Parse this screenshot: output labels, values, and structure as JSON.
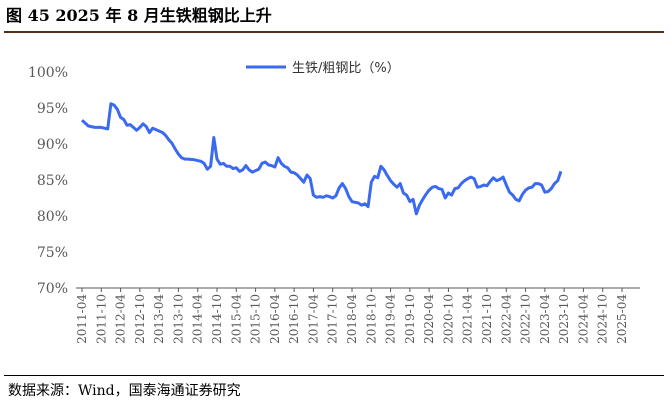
{
  "figure": {
    "title": "图 45 2025 年 8 月生铁粗钢比上升",
    "source": "数据来源：Wind，国泰海通证券研究"
  },
  "colors": {
    "series": "#3a6af0",
    "rule": "#5a2d17",
    "axis": "#595959"
  },
  "chart_data": {
    "type": "line",
    "title": "",
    "xlabel": "",
    "ylabel": "",
    "ylim": [
      70,
      100
    ],
    "y_ticks": [
      "70%",
      "75%",
      "80%",
      "85%",
      "90%",
      "95%",
      "100%"
    ],
    "x_ticks": [
      "2011-04",
      "2011-10",
      "2012-04",
      "2012-10",
      "2013-04",
      "2013-10",
      "2014-04",
      "2014-10",
      "2015-04",
      "2015-10",
      "2016-04",
      "2016-10",
      "2017-04",
      "2017-10",
      "2018-04",
      "2018-10",
      "2019-04",
      "2019-10",
      "2020-04",
      "2020-10",
      "2021-04",
      "2021-10",
      "2022-04",
      "2022-10",
      "2023-04",
      "2023-10",
      "2024-04",
      "2024-10",
      "2025-04"
    ],
    "legend": "top-center",
    "grid": false,
    "series": [
      {
        "name": "生铁/粗钢比（%）",
        "points": [
          [
            "2011-04",
            93.3
          ],
          [
            "2011-06",
            92.5
          ],
          [
            "2011-08",
            92.3
          ],
          [
            "2011-10",
            92.3
          ],
          [
            "2011-12",
            92.1
          ],
          [
            "2012-01",
            95.6
          ],
          [
            "2012-02",
            95.4
          ],
          [
            "2012-03",
            94.8
          ],
          [
            "2012-04",
            93.7
          ],
          [
            "2012-05",
            93.4
          ],
          [
            "2012-06",
            92.6
          ],
          [
            "2012-07",
            92.7
          ],
          [
            "2012-08",
            92.3
          ],
          [
            "2012-09",
            91.9
          ],
          [
            "2012-10",
            92.3
          ],
          [
            "2012-11",
            92.8
          ],
          [
            "2012-12",
            92.4
          ],
          [
            "2013-01",
            91.6
          ],
          [
            "2013-02",
            92.2
          ],
          [
            "2013-03",
            92.0
          ],
          [
            "2013-05",
            91.6
          ],
          [
            "2013-06",
            91.2
          ],
          [
            "2013-07",
            90.6
          ],
          [
            "2013-08",
            90.1
          ],
          [
            "2013-09",
            89.3
          ],
          [
            "2013-10",
            88.6
          ],
          [
            "2013-11",
            88.1
          ],
          [
            "2013-12",
            87.9
          ],
          [
            "2014-01",
            87.9
          ],
          [
            "2014-03",
            87.8
          ],
          [
            "2014-05",
            87.6
          ],
          [
            "2014-06",
            87.3
          ],
          [
            "2014-07",
            86.5
          ],
          [
            "2014-08",
            86.9
          ],
          [
            "2014-09",
            90.9
          ],
          [
            "2014-10",
            87.9
          ],
          [
            "2014-11",
            87.2
          ],
          [
            "2014-12",
            87.3
          ],
          [
            "2015-01",
            86.9
          ],
          [
            "2015-02",
            86.9
          ],
          [
            "2015-03",
            86.6
          ],
          [
            "2015-04",
            86.7
          ],
          [
            "2015-05",
            86.2
          ],
          [
            "2015-06",
            86.4
          ],
          [
            "2015-07",
            87.0
          ],
          [
            "2015-08",
            86.4
          ],
          [
            "2015-09",
            86.1
          ],
          [
            "2015-10",
            86.3
          ],
          [
            "2015-11",
            86.5
          ],
          [
            "2015-12",
            87.3
          ],
          [
            "2016-01",
            87.5
          ],
          [
            "2016-02",
            87.1
          ],
          [
            "2016-03",
            87.0
          ],
          [
            "2016-04",
            86.8
          ],
          [
            "2016-05",
            88.1
          ],
          [
            "2016-06",
            87.3
          ],
          [
            "2016-07",
            86.9
          ],
          [
            "2016-08",
            86.7
          ],
          [
            "2016-09",
            86.1
          ],
          [
            "2016-10",
            86.0
          ],
          [
            "2016-11",
            85.7
          ],
          [
            "2016-12",
            85.2
          ],
          [
            "2017-01",
            84.7
          ],
          [
            "2017-02",
            85.7
          ],
          [
            "2017-03",
            85.2
          ],
          [
            "2017-04",
            82.9
          ],
          [
            "2017-05",
            82.6
          ],
          [
            "2017-06",
            82.7
          ],
          [
            "2017-07",
            82.6
          ],
          [
            "2017-08",
            82.8
          ],
          [
            "2017-09",
            82.7
          ],
          [
            "2017-10",
            82.5
          ],
          [
            "2017-11",
            82.8
          ],
          [
            "2017-12",
            83.9
          ],
          [
            "2018-01",
            84.5
          ],
          [
            "2018-02",
            83.8
          ],
          [
            "2018-03",
            82.7
          ],
          [
            "2018-04",
            82.0
          ],
          [
            "2018-05",
            81.9
          ],
          [
            "2018-06",
            81.8
          ],
          [
            "2018-07",
            81.5
          ],
          [
            "2018-08",
            81.7
          ],
          [
            "2018-09",
            81.3
          ],
          [
            "2018-10",
            84.7
          ],
          [
            "2018-11",
            85.5
          ],
          [
            "2018-12",
            85.3
          ],
          [
            "2019-01",
            86.9
          ],
          [
            "2019-02",
            86.4
          ],
          [
            "2019-03",
            85.6
          ],
          [
            "2019-04",
            84.9
          ],
          [
            "2019-05",
            84.4
          ],
          [
            "2019-06",
            84.0
          ],
          [
            "2019-07",
            84.5
          ],
          [
            "2019-08",
            83.2
          ],
          [
            "2019-09",
            82.9
          ],
          [
            "2019-10",
            82.0
          ],
          [
            "2019-11",
            82.3
          ],
          [
            "2019-12",
            80.3
          ],
          [
            "2020-01",
            81.5
          ],
          [
            "2020-02",
            82.3
          ],
          [
            "2020-03",
            83.0
          ],
          [
            "2020-04",
            83.6
          ],
          [
            "2020-05",
            84.0
          ],
          [
            "2020-06",
            84.1
          ],
          [
            "2020-07",
            83.8
          ],
          [
            "2020-08",
            83.7
          ],
          [
            "2020-09",
            82.5
          ],
          [
            "2020-10",
            83.2
          ],
          [
            "2020-11",
            82.9
          ],
          [
            "2020-12",
            83.8
          ],
          [
            "2021-01",
            83.9
          ],
          [
            "2021-02",
            84.5
          ],
          [
            "2021-03",
            84.9
          ],
          [
            "2021-04",
            85.2
          ],
          [
            "2021-05",
            85.4
          ],
          [
            "2021-06",
            85.2
          ],
          [
            "2021-07",
            84.0
          ],
          [
            "2021-08",
            84.1
          ],
          [
            "2021-09",
            84.3
          ],
          [
            "2021-10",
            84.2
          ],
          [
            "2021-11",
            84.8
          ],
          [
            "2021-12",
            85.3
          ],
          [
            "2022-01",
            84.9
          ],
          [
            "2022-02",
            85.1
          ],
          [
            "2022-03",
            85.4
          ],
          [
            "2022-04",
            84.3
          ],
          [
            "2022-05",
            83.3
          ],
          [
            "2022-06",
            82.9
          ],
          [
            "2022-07",
            82.3
          ],
          [
            "2022-08",
            82.1
          ],
          [
            "2022-09",
            83.0
          ],
          [
            "2022-10",
            83.6
          ],
          [
            "2022-11",
            83.9
          ],
          [
            "2022-12",
            84.0
          ],
          [
            "2023-01",
            84.5
          ],
          [
            "2023-02",
            84.5
          ],
          [
            "2023-03",
            84.3
          ],
          [
            "2023-04",
            83.3
          ],
          [
            "2023-05",
            83.4
          ],
          [
            "2023-06",
            83.8
          ],
          [
            "2023-07",
            84.5
          ],
          [
            "2023-08",
            84.9
          ],
          [
            "2023-09",
            86.2
          ]
        ]
      }
    ]
  }
}
